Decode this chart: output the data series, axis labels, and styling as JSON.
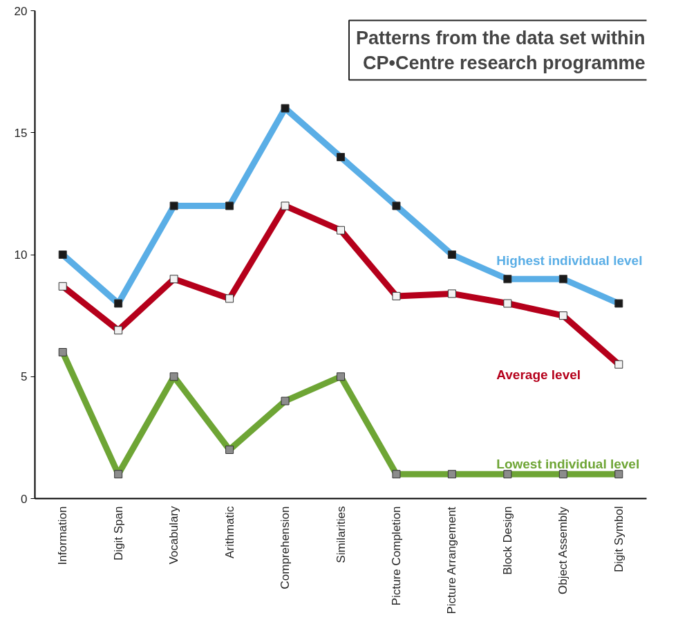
{
  "chart_data": {
    "type": "line",
    "title": "Patterns from the data set within CP•Centre research programme",
    "categories": [
      "Information",
      "Digit Span",
      "Vocabulary",
      "Arithmatic",
      "Comprehension",
      "Similarities",
      "Picture Completion",
      "Picture Arrangement",
      "Block Design",
      "Object Assembly",
      "Digit Symbol"
    ],
    "series": [
      {
        "name": "Highest individual level",
        "color": "#5aaee6",
        "values": [
          10,
          8,
          12,
          12,
          16,
          14,
          12,
          10,
          9,
          9,
          8
        ]
      },
      {
        "name": "Average level",
        "color": "#b5001b",
        "values": [
          8.7,
          6.9,
          9.0,
          8.2,
          12.0,
          11.0,
          8.3,
          8.4,
          8.0,
          7.5,
          5.5
        ]
      },
      {
        "name": "Lowest individual level",
        "color": "#6ea535",
        "values": [
          6,
          1,
          5,
          2,
          4,
          5,
          1,
          1,
          1,
          1,
          1
        ]
      }
    ],
    "ylim": [
      0,
      20
    ],
    "yticks": [
      0,
      5,
      10,
      15,
      20
    ],
    "grid": false,
    "legend": false,
    "marker": "square",
    "line_style": "solid"
  }
}
